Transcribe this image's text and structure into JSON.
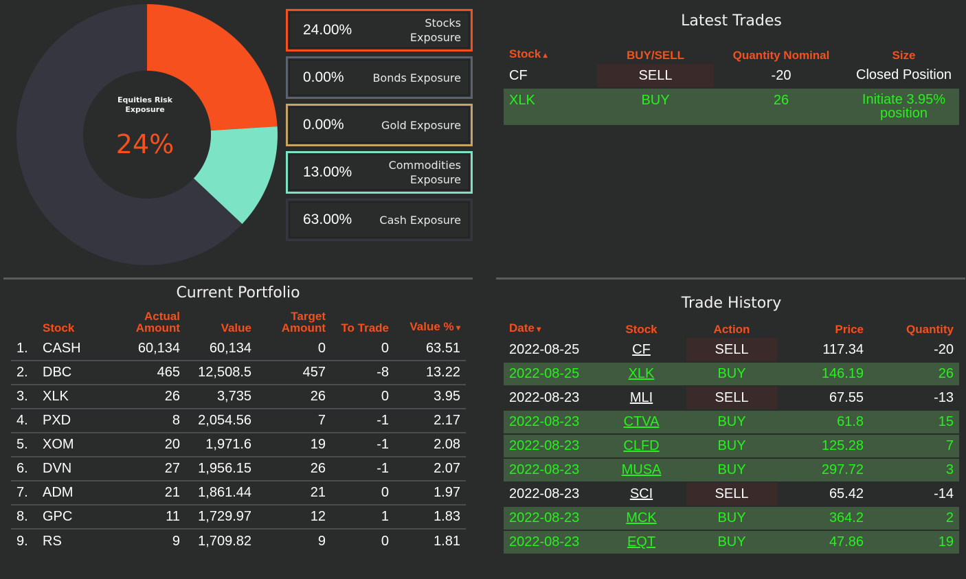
{
  "exposure": {
    "donut_title": "Equities Risk\nExposure",
    "donut_value": "24%",
    "slices": [
      {
        "name": "Stocks",
        "value": 24,
        "color": "#f5501d"
      },
      {
        "name": "Commodities",
        "value": 13,
        "color": "#7de3c5"
      },
      {
        "name": "Cash",
        "value": 63,
        "color": "#363641"
      }
    ],
    "cards": [
      {
        "pct": "24.00%",
        "label": "Stocks\nExposure",
        "border": "#f5501d"
      },
      {
        "pct": "0.00%",
        "label": "Bonds Exposure",
        "border": "#5c6370"
      },
      {
        "pct": "0.00%",
        "label": "Gold Exposure",
        "border": "#c7a365"
      },
      {
        "pct": "13.00%",
        "label": "Commodities\nExposure",
        "border": "#7de3c5"
      },
      {
        "pct": "63.00%",
        "label": "Cash Exposure",
        "border": "#363641"
      }
    ]
  },
  "latest_trades": {
    "title": "Latest Trades",
    "headers": {
      "stock": "Stock",
      "buysell": "BUY/SELL",
      "qty": "Quantity Nominal",
      "size": "Size"
    },
    "rows": [
      {
        "stock": "CF",
        "action": "SELL",
        "qty": "-20",
        "size": "Closed Position",
        "type": "sell"
      },
      {
        "stock": "XLK",
        "action": "BUY",
        "qty": "26",
        "size": "Initiate 3.95%\nposition",
        "type": "buy"
      }
    ]
  },
  "portfolio": {
    "title": "Current Portfolio",
    "headers": {
      "stock": "Stock",
      "actual": "Actual\nAmount",
      "value": "Value",
      "target": "Target\nAmount",
      "totrade": "To Trade",
      "valuepct": "Value %"
    },
    "rows": [
      {
        "n": "1.",
        "stock": "CASH",
        "actual": "60,134",
        "value": "60,134",
        "target": "0",
        "totrade": "0",
        "valuepct": "63.51"
      },
      {
        "n": "2.",
        "stock": "DBC",
        "actual": "465",
        "value": "12,508.5",
        "target": "457",
        "totrade": "-8",
        "valuepct": "13.22"
      },
      {
        "n": "3.",
        "stock": "XLK",
        "actual": "26",
        "value": "3,735",
        "target": "26",
        "totrade": "0",
        "valuepct": "3.95"
      },
      {
        "n": "4.",
        "stock": "PXD",
        "actual": "8",
        "value": "2,054.56",
        "target": "7",
        "totrade": "-1",
        "valuepct": "2.17"
      },
      {
        "n": "5.",
        "stock": "XOM",
        "actual": "20",
        "value": "1,971.6",
        "target": "19",
        "totrade": "-1",
        "valuepct": "2.08"
      },
      {
        "n": "6.",
        "stock": "DVN",
        "actual": "27",
        "value": "1,956.15",
        "target": "26",
        "totrade": "-1",
        "valuepct": "2.07"
      },
      {
        "n": "7.",
        "stock": "ADM",
        "actual": "21",
        "value": "1,861.44",
        "target": "21",
        "totrade": "0",
        "valuepct": "1.97"
      },
      {
        "n": "8.",
        "stock": "GPC",
        "actual": "11",
        "value": "1,729.97",
        "target": "12",
        "totrade": "1",
        "valuepct": "1.83"
      },
      {
        "n": "9.",
        "stock": "RS",
        "actual": "9",
        "value": "1,709.82",
        "target": "9",
        "totrade": "0",
        "valuepct": "1.81"
      }
    ]
  },
  "history": {
    "title": "Trade History",
    "headers": {
      "date": "Date",
      "stock": "Stock",
      "action": "Action",
      "price": "Price",
      "qty": "Quantity"
    },
    "rows": [
      {
        "date": "2022-08-25",
        "stock": "CF",
        "action": "SELL",
        "price": "117.34",
        "qty": "-20",
        "type": "sell"
      },
      {
        "date": "2022-08-25",
        "stock": "XLK",
        "action": "BUY",
        "price": "146.19",
        "qty": "26",
        "type": "buy"
      },
      {
        "date": "2022-08-23",
        "stock": "MLI",
        "action": "SELL",
        "price": "67.55",
        "qty": "-13",
        "type": "sell"
      },
      {
        "date": "2022-08-23",
        "stock": "CTVA",
        "action": "BUY",
        "price": "61.8",
        "qty": "15",
        "type": "buy"
      },
      {
        "date": "2022-08-23",
        "stock": "CLFD",
        "action": "BUY",
        "price": "125.28",
        "qty": "7",
        "type": "buy"
      },
      {
        "date": "2022-08-23",
        "stock": "MUSA",
        "action": "BUY",
        "price": "297.72",
        "qty": "3",
        "type": "buy"
      },
      {
        "date": "2022-08-23",
        "stock": "SCI",
        "action": "SELL",
        "price": "65.42",
        "qty": "-14",
        "type": "sell"
      },
      {
        "date": "2022-08-23",
        "stock": "MCK",
        "action": "BUY",
        "price": "364.2",
        "qty": "2",
        "type": "buy"
      },
      {
        "date": "2022-08-23",
        "stock": "EQT",
        "action": "BUY",
        "price": "47.86",
        "qty": "19",
        "type": "buy"
      }
    ]
  }
}
